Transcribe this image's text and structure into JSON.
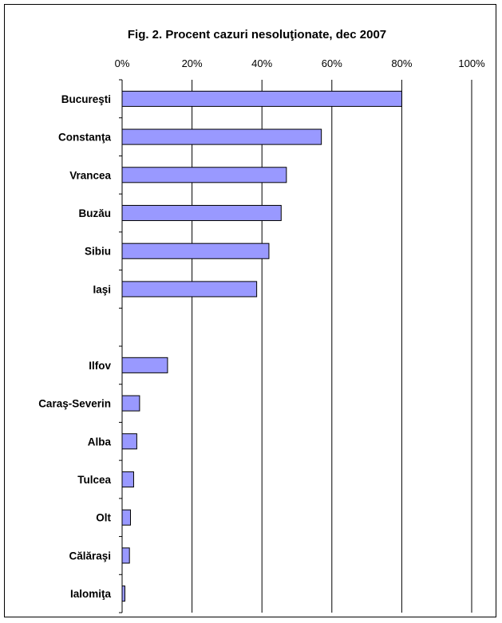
{
  "chart_data": {
    "type": "bar",
    "orientation": "horizontal",
    "title": "Fig. 2. Procent cazuri nesoluţionate, dec 2007",
    "xlabel": "",
    "ylabel": "",
    "xlim": [
      0,
      100
    ],
    "x_ticks": [
      "0%",
      "20%",
      "40%",
      "60%",
      "80%",
      "100%"
    ],
    "x_tick_values": [
      0,
      20,
      40,
      60,
      80,
      100
    ],
    "x_axis_position": "top",
    "grid": true,
    "legend": "none",
    "bar_color": "#9999ff",
    "bar_edge_color": "#000000",
    "categories": [
      "Bucureşti",
      "Constanţa",
      "Vrancea",
      "Buzău",
      "Sibiu",
      "Iaşi",
      "",
      "Ilfov",
      "Caraş-Severin",
      "Alba",
      "Tulcea",
      "Olt",
      "Călăraşi",
      "Ialomiţa"
    ],
    "values": [
      80,
      57,
      47,
      45.5,
      42,
      38.5,
      null,
      13,
      5,
      4.2,
      3.3,
      2.4,
      2.1,
      0.8
    ]
  }
}
